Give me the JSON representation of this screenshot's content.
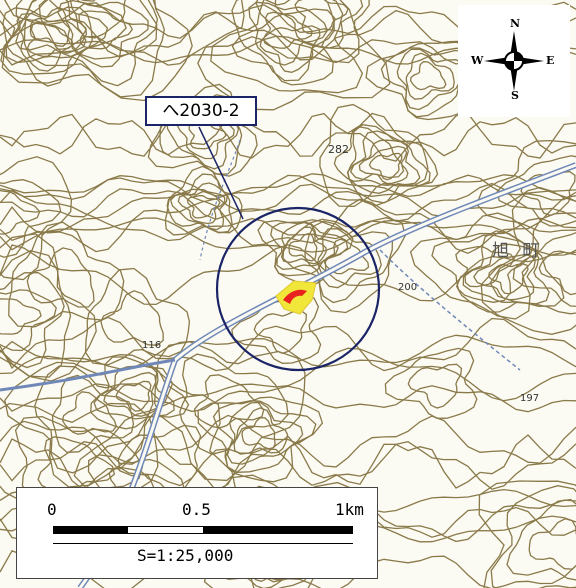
{
  "callout": {
    "label": "へ2030-2"
  },
  "compass": {
    "north": "N",
    "south": "S",
    "east": "E",
    "west": "W"
  },
  "scale": {
    "tick_0": "0",
    "tick_half": "0.5",
    "tick_end": "1km",
    "ratio": "S=1:25,000"
  },
  "map_labels": {
    "elev_282": "282",
    "elev_200": "200",
    "elev_116": "116",
    "elev_197": "197",
    "town": "旭 町"
  },
  "colors": {
    "contour": "#8a7a4a",
    "road": "#6f88b8",
    "circle": "#1a2466",
    "site_fill": "#e8221e",
    "site_edge": "#f1e63a"
  }
}
